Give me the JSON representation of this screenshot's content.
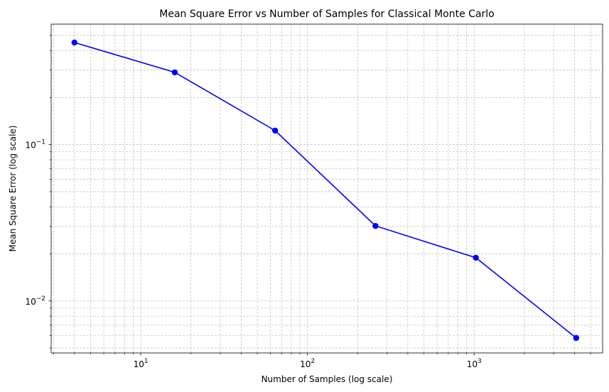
{
  "chart_data": {
    "type": "line",
    "title": "Mean Square Error vs Number of Samples for Classical Monte Carlo",
    "xlabel": "Number of Samples (log scale)",
    "ylabel": "Mean Square Error (log scale)",
    "xscale": "log",
    "yscale": "log",
    "xlim": [
      2.9,
      5900
    ],
    "ylim": [
      0.00465,
      0.59
    ],
    "grid": true,
    "legend": "none",
    "x_ticks": [
      {
        "value": 10,
        "base": "10",
        "exp": "1"
      },
      {
        "value": 100,
        "base": "10",
        "exp": "2"
      },
      {
        "value": 1000,
        "base": "10",
        "exp": "3"
      }
    ],
    "y_ticks": [
      {
        "value": 0.01,
        "base": "10",
        "exp": "−2"
      },
      {
        "value": 0.1,
        "base": "10",
        "exp": "−1"
      }
    ],
    "series": [
      {
        "color": "#0000ff",
        "marker": "circle",
        "x": [
          4,
          16,
          64,
          256,
          1024,
          4096
        ],
        "y": [
          0.45,
          0.29,
          0.123,
          0.0302,
          0.0189,
          0.0058
        ]
      }
    ]
  }
}
